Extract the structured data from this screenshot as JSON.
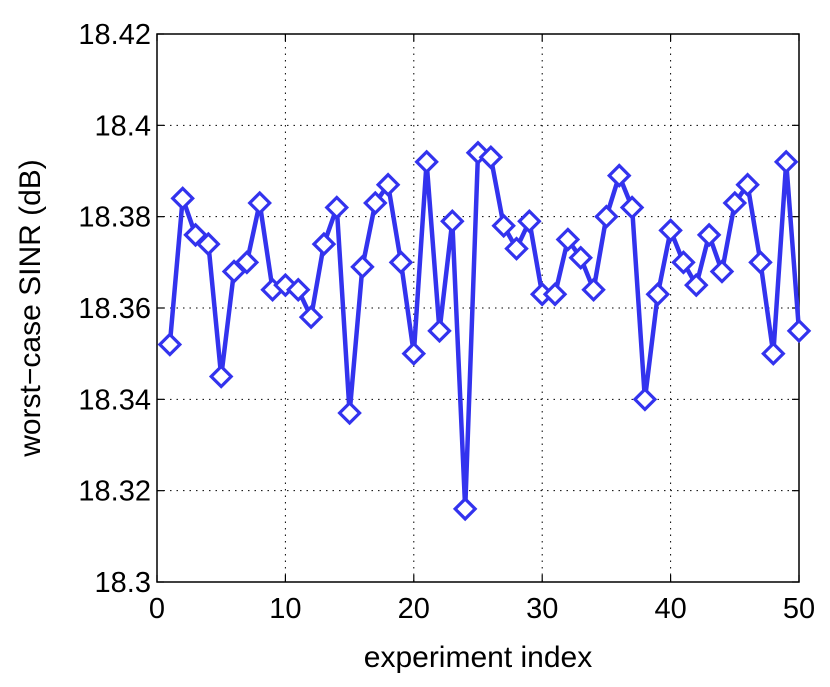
{
  "chart_data": {
    "type": "line",
    "title": "",
    "xlabel": "experiment index",
    "ylabel": "worst−case SINR (dB)",
    "xlim": [
      0,
      50
    ],
    "ylim": [
      18.3,
      18.42
    ],
    "xticks": [
      0,
      10,
      20,
      30,
      40,
      50
    ],
    "xtick_labels": [
      "0",
      "10",
      "20",
      "30",
      "40",
      "50"
    ],
    "yticks": [
      18.3,
      18.32,
      18.34,
      18.36,
      18.38,
      18.4,
      18.42
    ],
    "ytick_labels": [
      "18.3",
      "18.32",
      "18.34",
      "18.36",
      "18.38",
      "18.4",
      "18.42"
    ],
    "grid": true,
    "legend": "none",
    "marker": "diamond",
    "color": "#3333ee",
    "series": [
      {
        "x": [
          1,
          2,
          3,
          4,
          5,
          6,
          7,
          8,
          9,
          10,
          11,
          12,
          13,
          14,
          15,
          16,
          17,
          18,
          19,
          20,
          21,
          22,
          23,
          24,
          25,
          26,
          27,
          28,
          29,
          30,
          31,
          32,
          33,
          34,
          35,
          36,
          37,
          38,
          39,
          40,
          41,
          42,
          43,
          44,
          45,
          46,
          47,
          48,
          49,
          50
        ],
        "values": [
          18.352,
          18.384,
          18.376,
          18.374,
          18.345,
          18.368,
          18.37,
          18.383,
          18.364,
          18.365,
          18.364,
          18.358,
          18.374,
          18.382,
          18.337,
          18.369,
          18.383,
          18.387,
          18.37,
          18.35,
          18.392,
          18.355,
          18.379,
          18.316,
          18.394,
          18.393,
          18.378,
          18.373,
          18.379,
          18.363,
          18.363,
          18.375,
          18.371,
          18.364,
          18.38,
          18.389,
          18.382,
          18.34,
          18.363,
          18.377,
          18.37,
          18.365,
          18.376,
          18.368,
          18.383,
          18.387,
          18.37,
          18.35,
          18.392,
          18.355
        ]
      }
    ]
  }
}
